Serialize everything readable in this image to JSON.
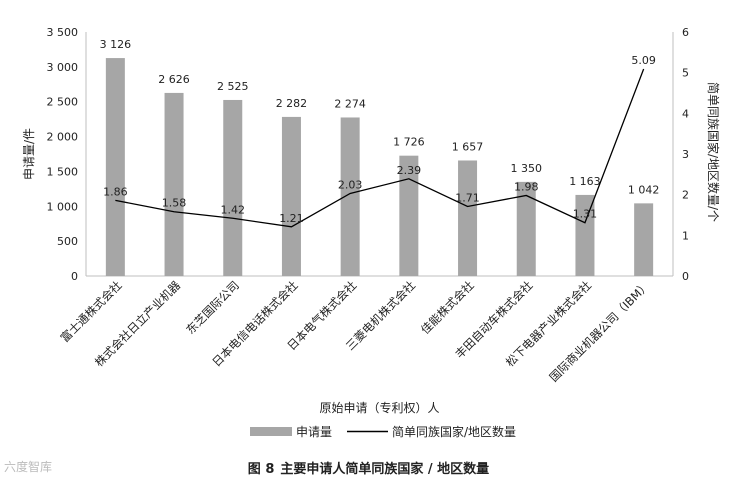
{
  "caption": {
    "fig_label": "图 8",
    "title": "主要申请人简单同族国家 / 地区数量"
  },
  "watermark": "六度智库",
  "chart_data": {
    "type": "bar",
    "categories": [
      "富士通株式会社",
      "株式会社日立产业机器",
      "东芝国际公司",
      "日本电信电话株式会社",
      "日本电气株式会社",
      "三菱电机株式会社",
      "佳能株式会社",
      "丰田自动车株式会社",
      "松下电器产业株式会社",
      "国际商业机器公司（IBM）"
    ],
    "series": [
      {
        "name": "申请量",
        "type": "bar",
        "axis": "left",
        "color": "#a6a6a6",
        "values": [
          3126,
          2626,
          2525,
          2282,
          2274,
          1726,
          1657,
          1350,
          1163,
          1042
        ],
        "labels": [
          "3 126",
          "2 626",
          "2 525",
          "2 282",
          "2 274",
          "1 726",
          "1 657",
          "1 350",
          "1 163",
          "1 042"
        ]
      },
      {
        "name": "简单同族国家/地区数量",
        "type": "line",
        "axis": "right",
        "color": "#000000",
        "values": [
          1.86,
          1.58,
          1.42,
          1.21,
          2.03,
          2.39,
          1.71,
          1.98,
          1.31,
          5.09
        ],
        "labels": [
          "1.86",
          "1.58",
          "1.42",
          "1.21",
          "2.03",
          "2.39",
          "1.71",
          "1.98",
          "1.31",
          "5.09"
        ]
      }
    ],
    "xlabel": "原始申请（专利权）人",
    "ylabel": "申请量/件",
    "y2label": "简单同族国家/地区数量/个",
    "ylim": [
      0,
      3500
    ],
    "y2lim": [
      0,
      6
    ],
    "yticks": [
      0,
      500,
      1000,
      1500,
      2000,
      2500,
      3000,
      3500
    ],
    "ytick_labels": [
      "0",
      "500",
      "1 000",
      "1 500",
      "2 000",
      "2 500",
      "3 000",
      "3 500"
    ],
    "y2ticks": [
      0,
      1,
      2,
      3,
      4,
      5,
      6
    ],
    "y2tick_labels": [
      "0",
      "1",
      "2",
      "3",
      "4",
      "5",
      "6"
    ],
    "grid": false,
    "legend": "bottom-center"
  }
}
